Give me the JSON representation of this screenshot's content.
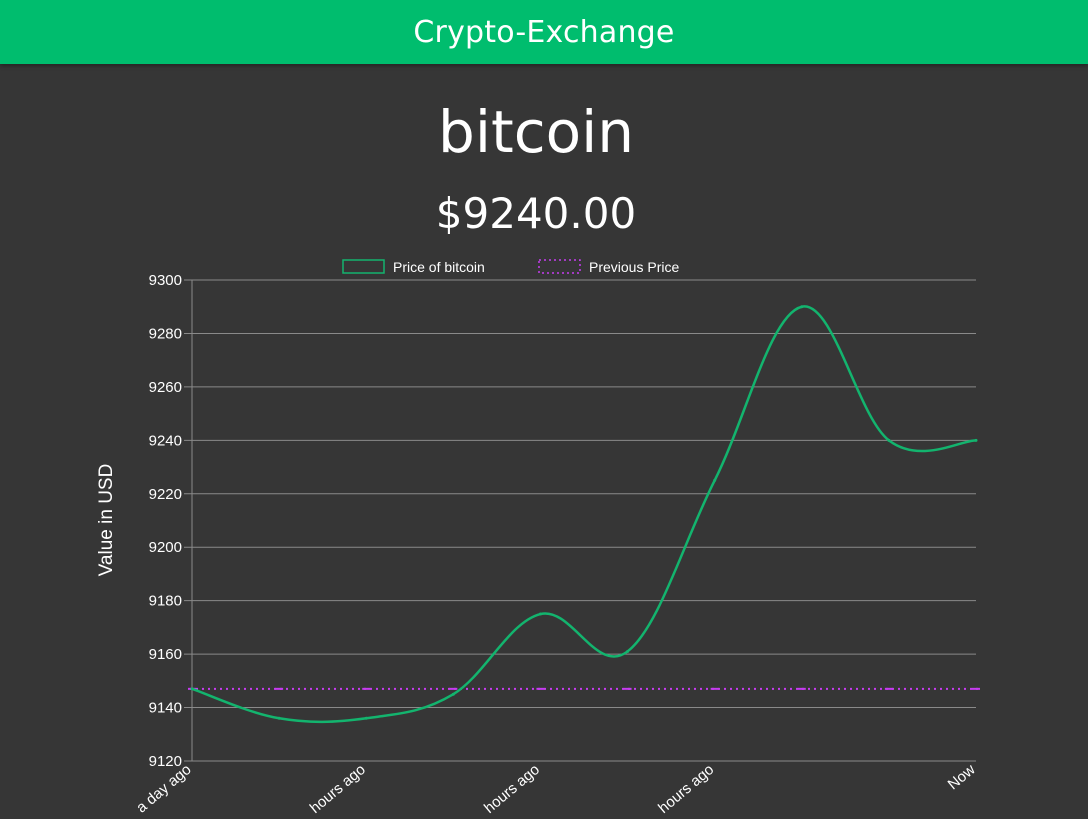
{
  "header": {
    "title": "Crypto-Exchange"
  },
  "coin": {
    "name": "bitcoin",
    "price": "$9240.00"
  },
  "colors": {
    "header_bg": "#00bd6e",
    "page_bg": "#363636",
    "price_line": "#13b46e",
    "previous_line": "#c63cf0",
    "grid": "#8a8a8a"
  },
  "chart_data": {
    "type": "line",
    "x": [
      "a day ago",
      "",
      "hours ago",
      "",
      "hours ago",
      "",
      "hours ago",
      "",
      "",
      "Now"
    ],
    "x_tick_labels": [
      "a day ago",
      "hours ago",
      "hours ago",
      "hours ago",
      "Now"
    ],
    "ylabel": "Value in USD",
    "ylim": [
      9120,
      9300
    ],
    "yticks": [
      9120,
      9140,
      9160,
      9180,
      9200,
      9220,
      9240,
      9260,
      9280,
      9300
    ],
    "grid": true,
    "legend_position": "top-center",
    "series": [
      {
        "name": "Price of bitcoin",
        "style": "solid",
        "values": [
          9147,
          9136,
          9136,
          9145,
          9175,
          9161,
          9225,
          9290,
          9240,
          9240
        ]
      },
      {
        "name": "Previous Price",
        "style": "dotted",
        "values": [
          9147,
          9147,
          9147,
          9147,
          9147,
          9147,
          9147,
          9147,
          9147,
          9147
        ]
      }
    ]
  }
}
